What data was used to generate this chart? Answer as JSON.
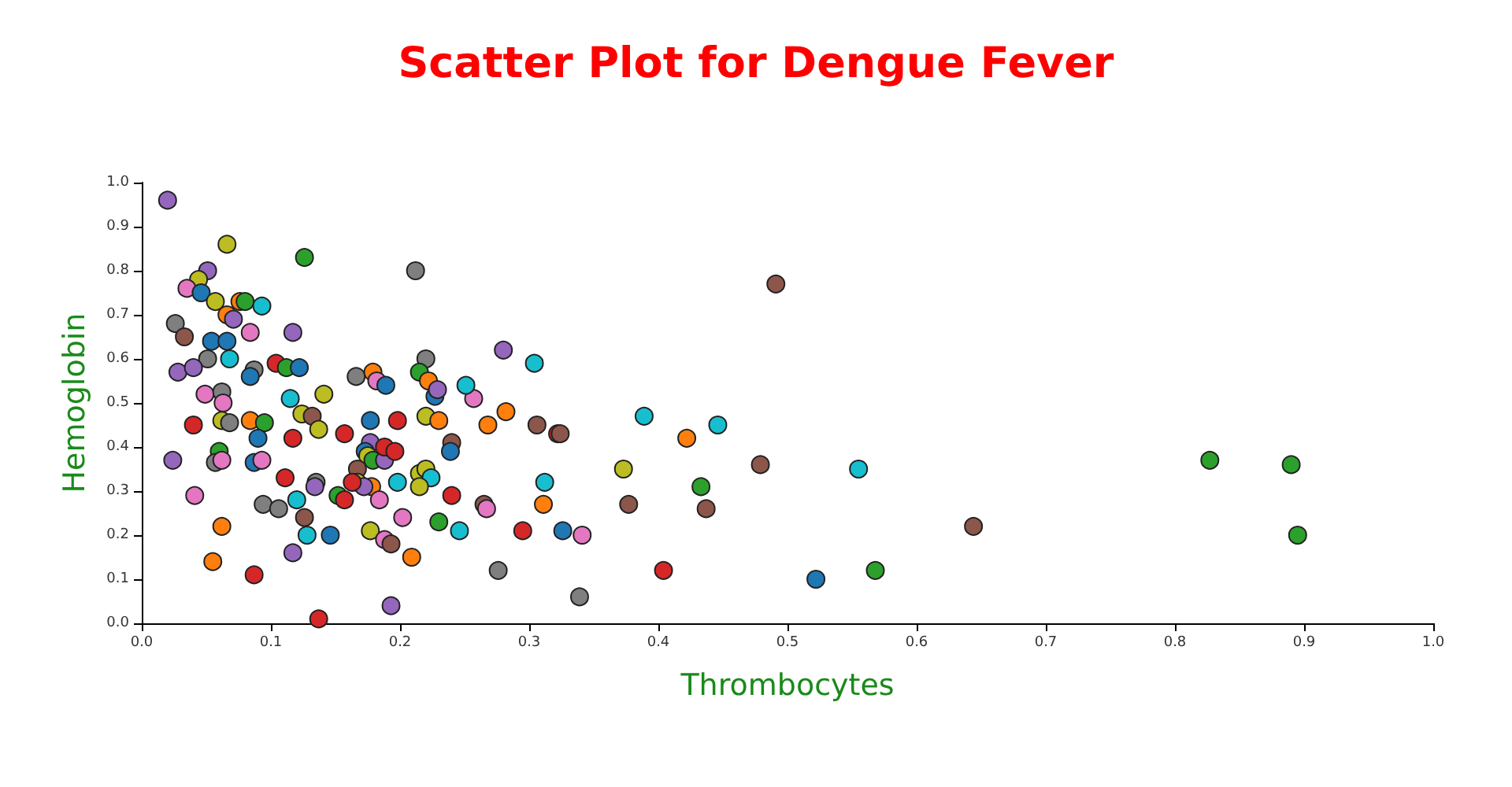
{
  "chart_data": {
    "type": "scatter",
    "title": "Scatter Plot for Dengue Fever",
    "xlabel": "Thrombocytes",
    "ylabel": "Hemoglobin",
    "marker": "circle",
    "grid": false,
    "xlim": [
      0,
      1
    ],
    "ylim": [
      0,
      1
    ],
    "xticks": [
      {
        "value": 0,
        "label": "0.0"
      },
      0.1,
      0.2,
      0.3,
      0.4,
      0.5,
      0.6,
      0.7,
      0.8,
      0.9,
      {
        "value": 1,
        "label": "1.0"
      }
    ],
    "yticks": [
      {
        "value": 0,
        "label": "0.0"
      },
      0.1,
      0.2,
      0.3,
      0.4,
      0.5,
      0.6,
      0.7,
      0.8,
      0.9,
      {
        "value": 1,
        "label": "1.0"
      }
    ],
    "x": [
      0.02,
      0.066,
      0.126,
      0.212,
      0.491,
      0.051,
      0.044,
      0.035,
      0.046,
      0.057,
      0.076,
      0.08,
      0.093,
      0.066,
      0.071,
      0.026,
      0.033,
      0.084,
      0.117,
      0.054,
      0.066,
      0.051,
      0.068,
      0.087,
      0.084,
      0.028,
      0.04,
      0.049,
      0.062,
      0.063,
      0.115,
      0.104,
      0.112,
      0.122,
      0.04,
      0.062,
      0.068,
      0.084,
      0.095,
      0.09,
      0.117,
      0.124,
      0.132,
      0.137,
      0.024,
      0.06,
      0.057,
      0.062,
      0.087,
      0.093,
      0.111,
      0.135,
      0.134,
      0.041,
      0.094,
      0.106,
      0.12,
      0.126,
      0.128,
      0.062,
      0.117,
      0.055,
      0.087,
      0.137,
      0.141,
      0.227,
      0.257,
      0.268,
      0.177,
      0.198,
      0.22,
      0.23,
      0.157,
      0.24,
      0.239,
      0.177,
      0.173,
      0.175,
      0.179,
      0.188,
      0.188,
      0.196,
      0.167,
      0.167,
      0.178,
      0.172,
      0.163,
      0.152,
      0.157,
      0.198,
      0.184,
      0.215,
      0.22,
      0.224,
      0.215,
      0.24,
      0.265,
      0.202,
      0.23,
      0.246,
      0.146,
      0.177,
      0.188,
      0.193,
      0.209,
      0.276,
      0.193,
      0.28,
      0.304,
      0.282,
      0.306,
      0.322,
      0.324,
      0.389,
      0.446,
      0.422,
      0.479,
      0.373,
      0.433,
      0.312,
      0.311,
      0.377,
      0.437,
      0.295,
      0.326,
      0.341,
      0.404,
      0.339,
      0.522,
      0.555,
      0.568,
      0.644,
      0.827,
      0.89,
      0.895,
      0.166,
      0.179,
      0.182,
      0.189,
      0.22,
      0.215,
      0.222,
      0.229,
      0.251,
      0.267
    ],
    "values": [
      0.96,
      0.86,
      0.83,
      0.8,
      0.77,
      0.8,
      0.78,
      0.76,
      0.75,
      0.73,
      0.73,
      0.73,
      0.72,
      0.7,
      0.69,
      0.68,
      0.65,
      0.66,
      0.66,
      0.64,
      0.64,
      0.6,
      0.6,
      0.575,
      0.56,
      0.57,
      0.58,
      0.52,
      0.525,
      0.5,
      0.51,
      0.59,
      0.58,
      0.58,
      0.45,
      0.46,
      0.455,
      0.46,
      0.455,
      0.42,
      0.42,
      0.475,
      0.47,
      0.44,
      0.37,
      0.39,
      0.365,
      0.37,
      0.365,
      0.37,
      0.33,
      0.32,
      0.31,
      0.29,
      0.27,
      0.26,
      0.28,
      0.24,
      0.2,
      0.22,
      0.16,
      0.14,
      0.11,
      0.01,
      0.52,
      0.515,
      0.51,
      0.45,
      0.46,
      0.46,
      0.47,
      0.46,
      0.43,
      0.41,
      0.39,
      0.41,
      0.39,
      0.38,
      0.37,
      0.37,
      0.4,
      0.39,
      0.35,
      0.32,
      0.31,
      0.31,
      0.32,
      0.29,
      0.28,
      0.32,
      0.28,
      0.34,
      0.35,
      0.33,
      0.31,
      0.29,
      0.27,
      0.24,
      0.23,
      0.21,
      0.2,
      0.21,
      0.19,
      0.18,
      0.15,
      0.12,
      0.04,
      0.62,
      0.59,
      0.48,
      0.45,
      0.43,
      0.43,
      0.47,
      0.45,
      0.42,
      0.36,
      0.35,
      0.31,
      0.32,
      0.27,
      0.27,
      0.26,
      0.21,
      0.21,
      0.2,
      0.12,
      0.06,
      0.1,
      0.35,
      0.12,
      0.22,
      0.37,
      0.36,
      0.2,
      0.56,
      0.57,
      0.55,
      0.54,
      0.6,
      0.57,
      0.55,
      0.53,
      0.54,
      0.26
    ],
    "colors": [
      "#9467bd",
      "#bcbd22",
      "#2ca02c",
      "#7f7f7f",
      "#8c564b",
      "#9467bd",
      "#bcbd22",
      "#e377c2",
      "#1f77b4",
      "#bcbd22",
      "#ff7f0e",
      "#2ca02c",
      "#17becf",
      "#ff7f0e",
      "#9467bd",
      "#7f7f7f",
      "#8c564b",
      "#e377c2",
      "#9467bd",
      "#1f77b4",
      "#1f77b4",
      "#7f7f7f",
      "#17becf",
      "#7f7f7f",
      "#1f77b4",
      "#9467bd",
      "#9467bd",
      "#e377c2",
      "#7f7f7f",
      "#e377c2",
      "#17becf",
      "#d62728",
      "#2ca02c",
      "#1f77b4",
      "#d62728",
      "#bcbd22",
      "#7f7f7f",
      "#ff7f0e",
      "#2ca02c",
      "#1f77b4",
      "#d62728",
      "#bcbd22",
      "#8c564b",
      "#bcbd22",
      "#9467bd",
      "#2ca02c",
      "#7f7f7f",
      "#e377c2",
      "#1f77b4",
      "#e377c2",
      "#d62728",
      "#7f7f7f",
      "#9467bd",
      "#e377c2",
      "#7f7f7f",
      "#7f7f7f",
      "#17becf",
      "#8c564b",
      "#17becf",
      "#ff7f0e",
      "#9467bd",
      "#ff7f0e",
      "#d62728",
      "#d62728",
      "#bcbd22",
      "#1f77b4",
      "#e377c2",
      "#ff7f0e",
      "#1f77b4",
      "#d62728",
      "#bcbd22",
      "#ff7f0e",
      "#d62728",
      "#8c564b",
      "#1f77b4",
      "#9467bd",
      "#1f77b4",
      "#bcbd22",
      "#2ca02c",
      "#9467bd",
      "#d62728",
      "#d62728",
      "#8c564b",
      "#bcbd22",
      "#ff7f0e",
      "#9467bd",
      "#d62728",
      "#2ca02c",
      "#d62728",
      "#17becf",
      "#e377c2",
      "#bcbd22",
      "#bcbd22",
      "#17becf",
      "#bcbd22",
      "#d62728",
      "#8c564b",
      "#e377c2",
      "#2ca02c",
      "#17becf",
      "#1f77b4",
      "#bcbd22",
      "#e377c2",
      "#8c564b",
      "#ff7f0e",
      "#7f7f7f",
      "#9467bd",
      "#9467bd",
      "#17becf",
      "#ff7f0e",
      "#8c564b",
      "#d62728",
      "#8c564b",
      "#17becf",
      "#17becf",
      "#ff7f0e",
      "#8c564b",
      "#bcbd22",
      "#2ca02c",
      "#17becf",
      "#ff7f0e",
      "#8c564b",
      "#8c564b",
      "#d62728",
      "#1f77b4",
      "#e377c2",
      "#d62728",
      "#7f7f7f",
      "#1f77b4",
      "#17becf",
      "#2ca02c",
      "#8c564b",
      "#2ca02c",
      "#2ca02c",
      "#2ca02c",
      "#7f7f7f",
      "#ff7f0e",
      "#e377c2",
      "#1f77b4",
      "#7f7f7f",
      "#2ca02c",
      "#ff7f0e",
      "#9467bd",
      "#17becf",
      "#e377c2"
    ]
  }
}
